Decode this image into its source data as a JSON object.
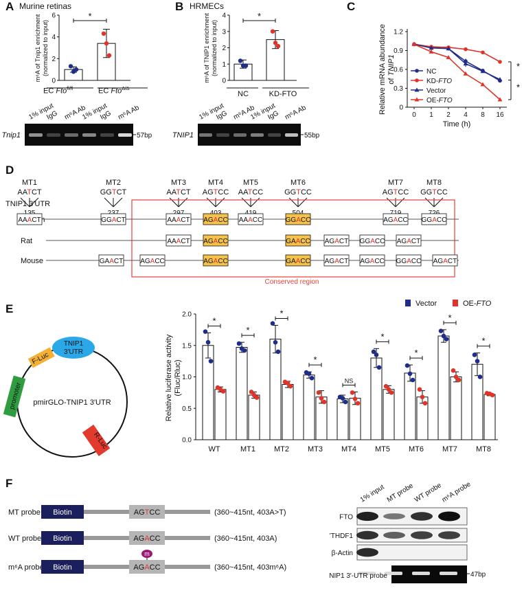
{
  "panels": {
    "A": {
      "label": "A",
      "title": "Murine retinas",
      "ylabel_lines": [
        "m⁶A of Tnip1 enrichment",
        "(normalized to input)"
      ],
      "yticks": [
        "0",
        "2",
        "4",
        "6"
      ],
      "groups": [
        "EC Fto fl/fl",
        "EC Fto Δ/Δ"
      ],
      "group_base": [
        "EC ",
        "EC "
      ],
      "group_gene": [
        "Fto",
        "Fto"
      ],
      "group_sup": [
        "fl/fl",
        "Δ/Δ"
      ],
      "sig": "*",
      "gel_lanes": [
        "1% input",
        "IgG",
        "m⁶A Ab",
        "1% input",
        "IgG",
        "m⁶A Ab"
      ],
      "gel_gene": "Tnip1",
      "gel_size": "57bp"
    },
    "B": {
      "label": "B",
      "title": "HRMECs",
      "ylabel_lines": [
        "m⁶A of TNIP1 enrichment",
        "(normalized to input)"
      ],
      "yticks": [
        "0",
        "1",
        "2",
        "3",
        "4"
      ],
      "groups": [
        "NC",
        "KD-FTO"
      ],
      "sig": "*",
      "gel_lanes": [
        "1% input",
        "IgG",
        "m⁶A Ab",
        "1% input",
        "IgG",
        "m⁶A Ab"
      ],
      "gel_gene": "TNIP1",
      "gel_size": "55bp"
    },
    "C": {
      "label": "C",
      "ylabel_lines": [
        "Relative mRNA abundance",
        "of TNIP1"
      ],
      "xlabel": "Time (h)",
      "yticks": [
        "0",
        "0.3",
        "0.6",
        "0.9",
        "1.2"
      ],
      "xticks": [
        "0",
        "1",
        "2",
        "4",
        "8",
        "16"
      ],
      "legend": [
        "NC",
        "KD-FTO",
        "Vector",
        "OE-FTO"
      ],
      "sig": [
        "*",
        "*"
      ]
    },
    "D": {
      "label": "D",
      "utr_label": "TNIP1 3′UTR",
      "species": [
        "Human",
        "Rat",
        "Mouse"
      ],
      "conserved_label": "Conserved region",
      "mutants": [
        {
          "name": "MT1",
          "seq": [
            "AA",
            "T",
            "CT"
          ],
          "pos": "135"
        },
        {
          "name": "MT2",
          "seq": [
            "GG",
            "T",
            "CT"
          ],
          "pos": "237"
        },
        {
          "name": "MT3",
          "seq": [
            "AA",
            "T",
            "CT"
          ],
          "pos": "297"
        },
        {
          "name": "MT4",
          "seq": [
            "AG",
            "T",
            "CC"
          ],
          "pos": "403"
        },
        {
          "name": "MT5",
          "seq": [
            "AA",
            "T",
            "CC"
          ],
          "pos": "419"
        },
        {
          "name": "MT6",
          "seq": [
            "GG",
            "T",
            "CC"
          ],
          "pos": "504"
        },
        {
          "name": "MT7",
          "seq": [
            "AG",
            "T",
            "CC"
          ],
          "pos": "719"
        },
        {
          "name": "MT8",
          "seq": [
            "GG",
            "T",
            "CC"
          ],
          "pos": "726"
        }
      ],
      "human_motifs": [
        [
          "AA",
          "A",
          "CT"
        ],
        [
          "GG",
          "A",
          "CT"
        ],
        [
          "AA",
          "A",
          "CT"
        ],
        [
          "AG",
          "A",
          "CC"
        ],
        [
          "AA",
          "A",
          "CC"
        ],
        [
          "GG",
          "A",
          "CC"
        ],
        [
          "AG",
          "A",
          "CC"
        ],
        [
          "GG",
          "A",
          "CC"
        ]
      ],
      "rat_motifs": [
        [
          "AA",
          "A",
          "CT"
        ],
        [
          "AG",
          "A",
          "CC"
        ],
        [
          "GA",
          "A",
          "CC"
        ],
        [
          "AG",
          "A",
          "CT"
        ],
        [
          "GG",
          "A",
          "CC"
        ],
        [
          "AG",
          "A",
          "CT"
        ]
      ],
      "mouse_motifs": [
        [
          "GA",
          "A",
          "CT"
        ],
        [
          "AG",
          "A",
          "CC"
        ],
        [
          "AG",
          "A",
          "CC"
        ],
        [
          "GA",
          "A",
          "CC"
        ],
        [
          "AG",
          "A",
          "CT"
        ],
        [
          "AG",
          "A",
          "CC"
        ],
        [
          "GG",
          "A",
          "CC"
        ],
        [
          "AG",
          "A",
          "CT"
        ]
      ]
    },
    "E": {
      "label": "E",
      "plasmid_name": "pmirGLO-TNIP1 3′UTR",
      "parts": [
        "TNIP1",
        "3′UTR",
        "F-Luc",
        "promoter",
        "R-Luc"
      ],
      "ylabel_lines": [
        "Relative luciferase activity",
        "(Fluc/Rluc)"
      ],
      "yticks": [
        "0.0",
        "0.5",
        "1.0",
        "1.5",
        "2.0"
      ],
      "legend": [
        "Vector",
        "OE-FTO"
      ],
      "sig_labels": [
        "*",
        "*",
        "*",
        "*",
        "NS",
        "*",
        "*",
        "*",
        "*"
      ]
    },
    "F": {
      "label": "F",
      "probes": [
        {
          "name": "MT probe",
          "biotin": "Biotin",
          "seq": [
            "AG",
            "T",
            "CC"
          ],
          "desc": "(360~415nt, 403A>T)"
        },
        {
          "name": "WT probe",
          "biotin": "Biotin",
          "seq": [
            "AG",
            "A",
            "CC"
          ],
          "desc": "(360~415nt, 403A)"
        },
        {
          "name": "m⁶A probe",
          "biotin": "Biotin",
          "seq": [
            "AG",
            "A",
            "CC"
          ],
          "desc": "(360~415nt, 403m⁶A)",
          "mark": "m"
        }
      ],
      "blot_lanes": [
        "1% input",
        "MT probe",
        "WT probe",
        "m⁶A probe"
      ],
      "blot_rows": [
        "FTO",
        "YTHDF1",
        "β-Actin",
        "TNIP1 3′-UTR probe"
      ],
      "blot_size": "47bp"
    }
  },
  "colors": {
    "navy": "#1f2d8a",
    "red": "#e0342a",
    "conserved": "#e5403a",
    "highlight": "#f5c24c",
    "blue_part": "#2aa8e8",
    "orange_part": "#f2b134",
    "green_part": "#2f9d3f",
    "red_part": "#e23b2e"
  },
  "chart_data": [
    {
      "type": "bar",
      "id": "A",
      "categories": [
        "EC Fto fl/fl",
        "EC Fto Δ/Δ"
      ],
      "values": [
        1.0,
        3.4
      ],
      "errors": [
        0.25,
        1.3
      ],
      "points": [
        [
          1.3,
          0.8,
          1.0
        ],
        [
          4.3,
          3.4,
          2.3
        ]
      ],
      "ylabel": "m6A of Tnip1 enrichment (normalized to input)",
      "ylim": [
        0,
        6
      ]
    },
    {
      "type": "bar",
      "id": "B",
      "categories": [
        "NC",
        "KD-FTO"
      ],
      "values": [
        1.0,
        2.5
      ],
      "errors": [
        0.25,
        0.55
      ],
      "points": [
        [
          1.2,
          0.9,
          0.9
        ],
        [
          3.0,
          2.3,
          2.1
        ]
      ],
      "ylabel": "m6A of TNIP1 enrichment (normalized to input)",
      "ylim": [
        0,
        4
      ]
    },
    {
      "type": "line",
      "id": "C",
      "x": [
        "0",
        "1",
        "2",
        "4",
        "8",
        "16"
      ],
      "series": [
        {
          "name": "NC",
          "values": [
            1.0,
            0.95,
            0.93,
            0.73,
            0.58,
            0.42
          ],
          "err": [
            0.03,
            0.03,
            0.03,
            0.04,
            0.02,
            0.02
          ]
        },
        {
          "name": "KD-FTO",
          "values": [
            1.0,
            0.96,
            0.95,
            0.92,
            0.87,
            0.72
          ],
          "err": [
            0.03,
            0.02,
            0.02,
            0.02,
            0.02,
            0.02
          ]
        },
        {
          "name": "Vector",
          "values": [
            1.0,
            0.94,
            0.93,
            0.69,
            0.57,
            0.44
          ],
          "err": [
            0.03,
            0.03,
            0.03,
            0.05,
            0.02,
            0.02
          ]
        },
        {
          "name": "OE-FTO",
          "values": [
            1.0,
            0.88,
            0.79,
            0.53,
            0.36,
            0.12
          ],
          "err": [
            0.03,
            0.02,
            0.02,
            0.02,
            0.02,
            0.01
          ]
        }
      ],
      "xlabel": "Time (h)",
      "ylabel": "Relative mRNA abundance of TNIP1",
      "ylim": [
        0,
        1.2
      ]
    },
    {
      "type": "bar",
      "id": "E",
      "categories": [
        "WT",
        "MT1",
        "MT2",
        "MT3",
        "MT4",
        "MT5",
        "MT6",
        "MT7",
        "MT8"
      ],
      "series": [
        {
          "name": "Vector",
          "values": [
            1.5,
            1.47,
            1.6,
            1.03,
            0.65,
            1.3,
            1.06,
            1.65,
            1.2
          ],
          "err": [
            0.2,
            0.08,
            0.22,
            0.05,
            0.06,
            0.15,
            0.13,
            0.1,
            0.18
          ],
          "points": [
            [
              1.72,
              1.55,
              1.25
            ],
            [
              1.53,
              1.45,
              1.42
            ],
            [
              1.85,
              1.55,
              1.4
            ],
            [
              1.07,
              1.05,
              0.98
            ],
            [
              0.68,
              0.66,
              0.6
            ],
            [
              1.4,
              1.35,
              1.15
            ],
            [
              1.18,
              1.05,
              0.95
            ],
            [
              1.73,
              1.65,
              1.6
            ],
            [
              1.35,
              1.25,
              1.0
            ]
          ]
        },
        {
          "name": "OE-FTO",
          "values": [
            0.8,
            0.71,
            0.88,
            0.68,
            0.66,
            0.8,
            0.68,
            1.0,
            0.72
          ],
          "err": [
            0.04,
            0.05,
            0.05,
            0.1,
            0.1,
            0.06,
            0.1,
            0.08,
            0.02
          ],
          "points": [
            [
              0.83,
              0.8,
              0.77
            ],
            [
              0.76,
              0.71,
              0.67
            ],
            [
              0.92,
              0.9,
              0.85
            ],
            [
              0.75,
              0.66,
              0.6
            ],
            [
              0.75,
              0.65,
              0.58
            ],
            [
              0.85,
              0.8,
              0.75
            ],
            [
              0.8,
              0.68,
              0.58
            ],
            [
              1.1,
              1.0,
              0.95
            ],
            [
              0.74,
              0.73,
              0.71
            ]
          ]
        }
      ],
      "ylabel": "Relative luciferase activity (Fluc/Rluc)",
      "ylim": [
        0,
        2.0
      ]
    }
  ]
}
